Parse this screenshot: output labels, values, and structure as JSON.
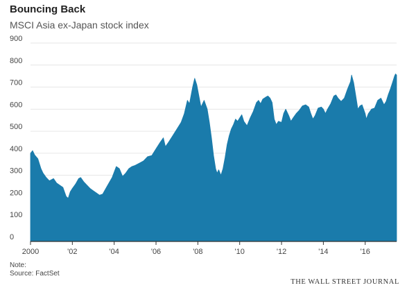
{
  "header": {
    "title": "Bouncing Back",
    "subtitle": "MSCI Asia ex-Japan stock index"
  },
  "footer": {
    "note": "Note:",
    "source": "Source: FactSet",
    "brand": "THE WALL STREET JOURNAL"
  },
  "colors": {
    "area_fill": "#1a7bab",
    "grid": "#e6e6e6",
    "axis": "#333333",
    "text": "#444444"
  },
  "chart_data": {
    "type": "area",
    "title": "Bouncing Back",
    "subtitle": "MSCI Asia ex-Japan stock index",
    "xlabel": "",
    "ylabel": "",
    "xlim": [
      2000.0,
      2017.5
    ],
    "ylim": [
      0,
      900
    ],
    "grid": true,
    "legend": "none",
    "y_ticks": [
      0,
      100,
      200,
      300,
      400,
      500,
      600,
      700,
      800,
      900
    ],
    "x_ticks": [
      {
        "value": 2000,
        "label": "2000"
      },
      {
        "value": 2002,
        "label": "'02"
      },
      {
        "value": 2004,
        "label": "'04"
      },
      {
        "value": 2006,
        "label": "'06"
      },
      {
        "value": 2008,
        "label": "'08"
      },
      {
        "value": 2010,
        "label": "'10"
      },
      {
        "value": 2012,
        "label": "'12"
      },
      {
        "value": 2014,
        "label": "'14"
      },
      {
        "value": 2016,
        "label": "'16"
      }
    ],
    "series": [
      {
        "values": [
          [
            2000.0,
            400
          ],
          [
            2000.1,
            412
          ],
          [
            2000.2,
            392
          ],
          [
            2000.35,
            375
          ],
          [
            2000.5,
            330
          ],
          [
            2000.6,
            310
          ],
          [
            2000.75,
            290
          ],
          [
            2000.9,
            275
          ],
          [
            2001.0,
            280
          ],
          [
            2001.1,
            285
          ],
          [
            2001.25,
            265
          ],
          [
            2001.4,
            255
          ],
          [
            2001.55,
            245
          ],
          [
            2001.7,
            205
          ],
          [
            2001.8,
            195
          ],
          [
            2001.9,
            225
          ],
          [
            2002.0,
            240
          ],
          [
            2002.15,
            260
          ],
          [
            2002.3,
            285
          ],
          [
            2002.4,
            290
          ],
          [
            2002.55,
            270
          ],
          [
            2002.7,
            255
          ],
          [
            2002.85,
            240
          ],
          [
            2003.0,
            230
          ],
          [
            2003.15,
            220
          ],
          [
            2003.3,
            210
          ],
          [
            2003.45,
            215
          ],
          [
            2003.6,
            240
          ],
          [
            2003.75,
            265
          ],
          [
            2003.9,
            290
          ],
          [
            2004.0,
            315
          ],
          [
            2004.1,
            340
          ],
          [
            2004.25,
            330
          ],
          [
            2004.4,
            295
          ],
          [
            2004.55,
            310
          ],
          [
            2004.7,
            330
          ],
          [
            2004.85,
            340
          ],
          [
            2005.0,
            345
          ],
          [
            2005.2,
            355
          ],
          [
            2005.4,
            365
          ],
          [
            2005.6,
            385
          ],
          [
            2005.8,
            390
          ],
          [
            2006.0,
            420
          ],
          [
            2006.2,
            450
          ],
          [
            2006.35,
            470
          ],
          [
            2006.45,
            430
          ],
          [
            2006.6,
            450
          ],
          [
            2006.8,
            480
          ],
          [
            2007.0,
            510
          ],
          [
            2007.2,
            540
          ],
          [
            2007.35,
            580
          ],
          [
            2007.5,
            640
          ],
          [
            2007.6,
            625
          ],
          [
            2007.75,
            700
          ],
          [
            2007.85,
            740
          ],
          [
            2007.95,
            710
          ],
          [
            2008.05,
            660
          ],
          [
            2008.15,
            610
          ],
          [
            2008.3,
            640
          ],
          [
            2008.45,
            600
          ],
          [
            2008.55,
            540
          ],
          [
            2008.65,
            470
          ],
          [
            2008.75,
            390
          ],
          [
            2008.85,
            330
          ],
          [
            2008.92,
            310
          ],
          [
            2009.0,
            325
          ],
          [
            2009.1,
            300
          ],
          [
            2009.2,
            330
          ],
          [
            2009.3,
            380
          ],
          [
            2009.4,
            440
          ],
          [
            2009.5,
            480
          ],
          [
            2009.6,
            510
          ],
          [
            2009.7,
            530
          ],
          [
            2009.8,
            555
          ],
          [
            2009.9,
            545
          ],
          [
            2010.0,
            560
          ],
          [
            2010.1,
            575
          ],
          [
            2010.2,
            545
          ],
          [
            2010.35,
            525
          ],
          [
            2010.5,
            560
          ],
          [
            2010.65,
            590
          ],
          [
            2010.8,
            630
          ],
          [
            2010.9,
            640
          ],
          [
            2011.0,
            625
          ],
          [
            2011.1,
            645
          ],
          [
            2011.25,
            655
          ],
          [
            2011.35,
            660
          ],
          [
            2011.45,
            650
          ],
          [
            2011.55,
            630
          ],
          [
            2011.65,
            555
          ],
          [
            2011.75,
            530
          ],
          [
            2011.85,
            545
          ],
          [
            2012.0,
            540
          ],
          [
            2012.1,
            580
          ],
          [
            2012.2,
            600
          ],
          [
            2012.35,
            570
          ],
          [
            2012.45,
            545
          ],
          [
            2012.55,
            560
          ],
          [
            2012.7,
            580
          ],
          [
            2012.85,
            595
          ],
          [
            2013.0,
            615
          ],
          [
            2013.15,
            620
          ],
          [
            2013.3,
            610
          ],
          [
            2013.4,
            580
          ],
          [
            2013.5,
            555
          ],
          [
            2013.6,
            570
          ],
          [
            2013.75,
            605
          ],
          [
            2013.9,
            610
          ],
          [
            2014.0,
            600
          ],
          [
            2014.1,
            580
          ],
          [
            2014.2,
            600
          ],
          [
            2014.35,
            625
          ],
          [
            2014.5,
            660
          ],
          [
            2014.6,
            665
          ],
          [
            2014.7,
            650
          ],
          [
            2014.85,
            635
          ],
          [
            2015.0,
            650
          ],
          [
            2015.15,
            690
          ],
          [
            2015.3,
            725
          ],
          [
            2015.35,
            755
          ],
          [
            2015.45,
            720
          ],
          [
            2015.55,
            660
          ],
          [
            2015.65,
            600
          ],
          [
            2015.75,
            615
          ],
          [
            2015.85,
            620
          ],
          [
            2016.0,
            580
          ],
          [
            2016.05,
            555
          ],
          [
            2016.15,
            580
          ],
          [
            2016.3,
            600
          ],
          [
            2016.45,
            605
          ],
          [
            2016.6,
            640
          ],
          [
            2016.75,
            650
          ],
          [
            2016.9,
            620
          ],
          [
            2017.0,
            635
          ],
          [
            2017.1,
            665
          ],
          [
            2017.2,
            690
          ],
          [
            2017.3,
            720
          ],
          [
            2017.4,
            750
          ],
          [
            2017.45,
            760
          ],
          [
            2017.5,
            755
          ]
        ]
      }
    ]
  }
}
